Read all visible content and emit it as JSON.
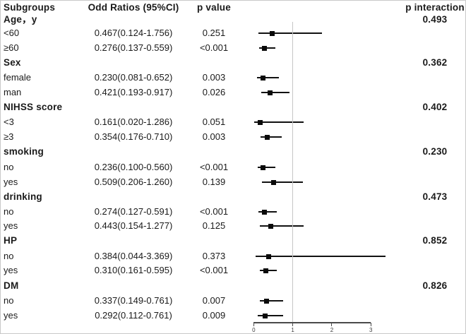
{
  "header": {
    "subgroups": "Subgroups",
    "or_ci": "Odd Ratios (95%CI)",
    "p_value": "p value",
    "p_interaction": "p interaction"
  },
  "axis": {
    "tick_labels": [
      "0",
      "1",
      "2",
      "3"
    ],
    "tick_values": [
      0,
      1,
      2,
      3
    ],
    "reference_line_x": 1
  },
  "rows": [
    {
      "type": "group",
      "label": "Age，y",
      "p_interaction": "0.493"
    },
    {
      "type": "item",
      "label": "<60",
      "or_ci": "0.467(0.124-1.756)",
      "p_value": "0.251",
      "or": 0.467,
      "ci_low": 0.124,
      "ci_high": 1.756
    },
    {
      "type": "item",
      "label": "≥60",
      "or_ci": "0.276(0.137-0.559)",
      "p_value": "<0.001",
      "or": 0.276,
      "ci_low": 0.137,
      "ci_high": 0.559
    },
    {
      "type": "group",
      "label": "Sex",
      "p_interaction": "0.362"
    },
    {
      "type": "item",
      "label": "female",
      "or_ci": "0.230(0.081-0.652)",
      "p_value": "0.003",
      "or": 0.23,
      "ci_low": 0.081,
      "ci_high": 0.652
    },
    {
      "type": "item",
      "label": "man",
      "or_ci": "0.421(0.193-0.917)",
      "p_value": "0.026",
      "or": 0.421,
      "ci_low": 0.193,
      "ci_high": 0.917
    },
    {
      "type": "group",
      "label": "NIHSS score",
      "p_interaction": "0.402"
    },
    {
      "type": "item",
      "label": "<3",
      "or_ci": "0.161(0.020-1.286)",
      "p_value": "0.051",
      "or": 0.161,
      "ci_low": 0.02,
      "ci_high": 1.286
    },
    {
      "type": "item",
      "label": "≥3",
      "or_ci": "0.354(0.176-0.710)",
      "p_value": "0.003",
      "or": 0.354,
      "ci_low": 0.176,
      "ci_high": 0.71
    },
    {
      "type": "group",
      "label": "smoking",
      "p_interaction": "0.230"
    },
    {
      "type": "item",
      "label": "no",
      "or_ci": "0.236(0.100-0.560)",
      "p_value": "<0.001",
      "or": 0.236,
      "ci_low": 0.1,
      "ci_high": 0.56
    },
    {
      "type": "item",
      "label": "yes",
      "or_ci": "0.509(0.206-1.260)",
      "p_value": "0.139",
      "or": 0.509,
      "ci_low": 0.206,
      "ci_high": 1.26
    },
    {
      "type": "group",
      "label": "drinking",
      "p_interaction": "0.473"
    },
    {
      "type": "item",
      "label": "no",
      "or_ci": "0.274(0.127-0.591)",
      "p_value": "<0.001",
      "or": 0.274,
      "ci_low": 0.127,
      "ci_high": 0.591
    },
    {
      "type": "item",
      "label": "yes",
      "or_ci": "0.443(0.154-1.277)",
      "p_value": "0.125",
      "or": 0.443,
      "ci_low": 0.154,
      "ci_high": 1.277
    },
    {
      "type": "group",
      "label": "HP",
      "p_interaction": "0.852"
    },
    {
      "type": "item",
      "label": "no",
      "or_ci": "0.384(0.044-3.369)",
      "p_value": "0.373",
      "or": 0.384,
      "ci_low": 0.044,
      "ci_high": 3.369
    },
    {
      "type": "item",
      "label": "yes",
      "or_ci": "0.310(0.161-0.595)",
      "p_value": "<0.001",
      "or": 0.31,
      "ci_low": 0.161,
      "ci_high": 0.595
    },
    {
      "type": "group",
      "label": "DM",
      "p_interaction": "0.826"
    },
    {
      "type": "item",
      "label": "no",
      "or_ci": "0.337(0.149-0.761)",
      "p_value": "0.007",
      "or": 0.337,
      "ci_low": 0.149,
      "ci_high": 0.761
    },
    {
      "type": "item",
      "label": "yes",
      "or_ci": "0.292(0.112-0.761)",
      "p_value": "0.009",
      "or": 0.292,
      "ci_low": 0.112,
      "ci_high": 0.761
    }
  ],
  "chart_data": {
    "type": "scatter",
    "subtype": "forest_plot",
    "title": "",
    "xlabel": "",
    "ylabel": "",
    "xlim": [
      0,
      3
    ],
    "x_ticks": [
      0,
      1,
      2,
      3
    ],
    "reference_line_x": 1,
    "grid": false,
    "legend_position": "none",
    "marker_color": "#0a0a0a",
    "series": [
      {
        "group": "Age，y",
        "level": "<60",
        "or": 0.467,
        "ci": [
          0.124,
          1.756
        ],
        "p": "0.251",
        "p_interaction": "0.493"
      },
      {
        "group": "Age，y",
        "level": "≥60",
        "or": 0.276,
        "ci": [
          0.137,
          0.559
        ],
        "p": "<0.001"
      },
      {
        "group": "Sex",
        "level": "female",
        "or": 0.23,
        "ci": [
          0.081,
          0.652
        ],
        "p": "0.003",
        "p_interaction": "0.362"
      },
      {
        "group": "Sex",
        "level": "man",
        "or": 0.421,
        "ci": [
          0.193,
          0.917
        ],
        "p": "0.026"
      },
      {
        "group": "NIHSS score",
        "level": "<3",
        "or": 0.161,
        "ci": [
          0.02,
          1.286
        ],
        "p": "0.051",
        "p_interaction": "0.402"
      },
      {
        "group": "NIHSS score",
        "level": "≥3",
        "or": 0.354,
        "ci": [
          0.176,
          0.71
        ],
        "p": "0.003"
      },
      {
        "group": "smoking",
        "level": "no",
        "or": 0.236,
        "ci": [
          0.1,
          0.56
        ],
        "p": "<0.001",
        "p_interaction": "0.230"
      },
      {
        "group": "smoking",
        "level": "yes",
        "or": 0.509,
        "ci": [
          0.206,
          1.26
        ],
        "p": "0.139"
      },
      {
        "group": "drinking",
        "level": "no",
        "or": 0.274,
        "ci": [
          0.127,
          0.591
        ],
        "p": "<0.001",
        "p_interaction": "0.473"
      },
      {
        "group": "drinking",
        "level": "yes",
        "or": 0.443,
        "ci": [
          0.154,
          1.277
        ],
        "p": "0.125"
      },
      {
        "group": "HP",
        "level": "no",
        "or": 0.384,
        "ci": [
          0.044,
          3.369
        ],
        "p": "0.373",
        "p_interaction": "0.852"
      },
      {
        "group": "HP",
        "level": "yes",
        "or": 0.31,
        "ci": [
          0.161,
          0.595
        ],
        "p": "<0.001"
      },
      {
        "group": "DM",
        "level": "no",
        "or": 0.337,
        "ci": [
          0.149,
          0.761
        ],
        "p": "0.007",
        "p_interaction": "0.826"
      },
      {
        "group": "DM",
        "level": "yes",
        "or": 0.292,
        "ci": [
          0.112,
          0.761
        ],
        "p": "0.009"
      }
    ]
  }
}
